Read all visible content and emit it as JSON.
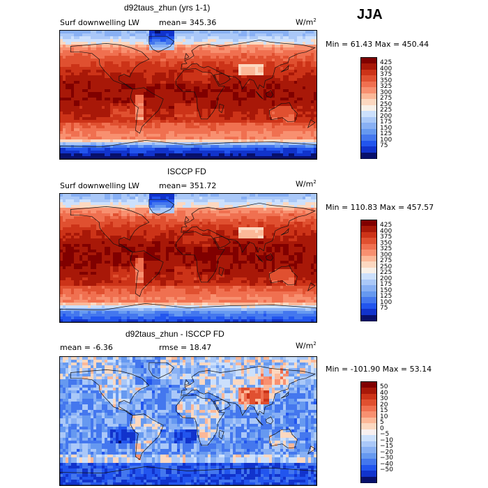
{
  "season": "JJA",
  "colors": {
    "abs_scale": [
      "#08106b",
      "#1133cc",
      "#2255ee",
      "#4477ee",
      "#6699f0",
      "#88b0f4",
      "#aac8f8",
      "#cce0fc",
      "#f8f0e8",
      "#fcd8c0",
      "#fcb898",
      "#f89070",
      "#f07050",
      "#e05030",
      "#cc3318",
      "#a81808",
      "#800000"
    ],
    "diff_scale": [
      "#08106b",
      "#1133cc",
      "#2255ee",
      "#4477ee",
      "#6699f0",
      "#88b0f4",
      "#aac8f8",
      "#cce0fc",
      "#f8f0f0",
      "#fcd8c0",
      "#fcb898",
      "#f89070",
      "#f07050",
      "#e05030",
      "#cc3318",
      "#a81808",
      "#800000"
    ]
  },
  "panels": [
    {
      "title": "d92taus_zhun (yrs 1-1)",
      "left_label": "Surf downwelling LW",
      "stat_label": "mean= 345.36",
      "units": "W/m",
      "units_sup": "2",
      "minmax": "Min =  61.43 Max = 450.44"
    },
    {
      "title": "ISCCP FD",
      "left_label": "Surf downwelling LW",
      "stat_label": "mean= 351.72",
      "units": "W/m",
      "units_sup": "2",
      "minmax": "Min = 110.83 Max = 457.57"
    },
    {
      "title": "d92taus_zhun - ISCCP FD",
      "left_label": "mean =   -6.36",
      "stat_label": "rmse =  18.47",
      "units": "W/m",
      "units_sup": "2",
      "minmax": "Min = -101.90 Max =  53.14"
    }
  ],
  "chart_data": [
    {
      "type": "heatmap",
      "title": "d92taus_zhun (yrs 1-1)",
      "variable": "Surf downwelling LW",
      "units": "W/m2",
      "mean": 345.36,
      "min": 61.43,
      "max": 450.44,
      "colorbar_ticks": [
        "425",
        "400",
        "375",
        "350",
        "325",
        "300",
        "275",
        "250",
        "225",
        "200",
        "175",
        "150",
        "125",
        "100",
        "75"
      ]
    },
    {
      "type": "heatmap",
      "title": "ISCCP FD",
      "variable": "Surf downwelling LW",
      "units": "W/m2",
      "mean": 351.72,
      "min": 110.83,
      "max": 457.57,
      "colorbar_ticks": [
        "425",
        "400",
        "375",
        "350",
        "325",
        "300",
        "275",
        "250",
        "225",
        "200",
        "175",
        "150",
        "125",
        "100",
        "75"
      ]
    },
    {
      "type": "heatmap",
      "title": "d92taus_zhun - ISCCP FD",
      "units": "W/m2",
      "mean": -6.36,
      "rmse": 18.47,
      "min": -101.9,
      "max": 53.14,
      "colorbar_ticks": [
        "50",
        "40",
        "30",
        "20",
        "15",
        "10",
        "5",
        "0",
        "−5",
        "−10",
        "−15",
        "−20",
        "−30",
        "−40",
        "−50"
      ]
    }
  ]
}
